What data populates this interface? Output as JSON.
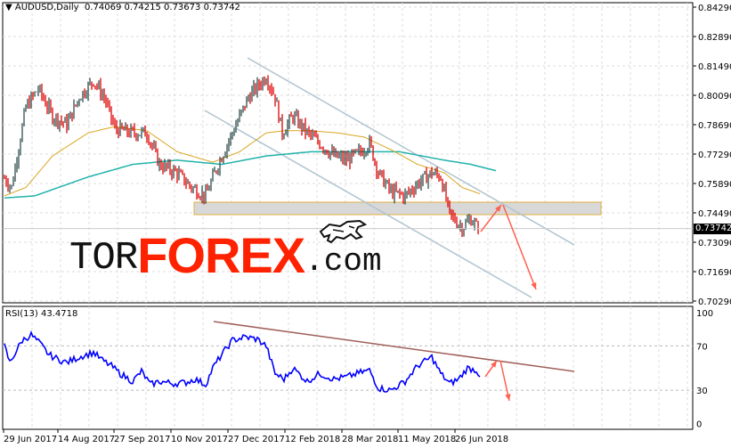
{
  "header": {
    "symbol_menu_icon": "triangle-down-icon",
    "title": "AUDUSD,Daily",
    "ohlc": "0.74069 0.74215 0.73673 0.73742"
  },
  "rsi_header": "RSI(13) 43.4718",
  "logo": {
    "part1": "TOR",
    "part2": "FOREX",
    "part3": ".com",
    "icon": "bull-icon"
  },
  "colors": {
    "bull_bar": "#2f4f4f",
    "bear_bar": "#e00000",
    "ma_fast": "#daa520",
    "ma_slow": "#20b2aa",
    "rsi": "#0000ff",
    "channel": "#b0c4d0",
    "arrow": "#ff6050",
    "rsi_trend": "#a0605a",
    "logo_red": "#ff2200"
  },
  "chart_data": [
    {
      "type": "ohlc",
      "title": "AUDUSD,Daily",
      "ylim": [
        0.7029,
        0.8429
      ],
      "price_ticks": [
        "0.84290",
        "0.82890",
        "0.81490",
        "0.80090",
        "0.78690",
        "0.77290",
        "0.75890",
        "0.74490",
        "0.73090",
        "0.71690",
        "0.70290"
      ],
      "current_price": "0.73742",
      "x_tick_labels": [
        "29 Jun 2017",
        "14 Aug 2017",
        "27 Sep 2017",
        "10 Nov 2017",
        "27 Dec 2017",
        "12 Feb 2018",
        "28 Mar 2018",
        "11 May 2018",
        "26 Jun 2018"
      ],
      "close_keypoints_by_bar": [
        [
          0,
          0.7614
        ],
        [
          4,
          0.7571
        ],
        [
          12,
          0.7953
        ],
        [
          19,
          0.804
        ],
        [
          27,
          0.791
        ],
        [
          35,
          0.787
        ],
        [
          42,
          0.8
        ],
        [
          50,
          0.808
        ],
        [
          56,
          0.8
        ],
        [
          62,
          0.785
        ],
        [
          72,
          0.783
        ],
        [
          80,
          0.783
        ],
        [
          87,
          0.768
        ],
        [
          97,
          0.7639
        ],
        [
          105,
          0.7571
        ],
        [
          113,
          0.753
        ],
        [
          120,
          0.768
        ],
        [
          128,
          0.783
        ],
        [
          137,
          0.8
        ],
        [
          147,
          0.81
        ],
        [
          152,
          0.8
        ],
        [
          156,
          0.783
        ],
        [
          162,
          0.791
        ],
        [
          170,
          0.783
        ],
        [
          177,
          0.778
        ],
        [
          185,
          0.772
        ],
        [
          192,
          0.77
        ],
        [
          200,
          0.774
        ],
        [
          205,
          0.778
        ],
        [
          210,
          0.764
        ],
        [
          217,
          0.755
        ],
        [
          225,
          0.753
        ],
        [
          232,
          0.759
        ],
        [
          240,
          0.764
        ],
        [
          245,
          0.762
        ],
        [
          250,
          0.744
        ],
        [
          257,
          0.738
        ],
        [
          262,
          0.742
        ],
        [
          266,
          0.73742
        ]
      ],
      "ma_fast_by_bar": [
        [
          0,
          0.753
        ],
        [
          12,
          0.757
        ],
        [
          27,
          0.772
        ],
        [
          47,
          0.783
        ],
        [
          62,
          0.786
        ],
        [
          80,
          0.784
        ],
        [
          97,
          0.774
        ],
        [
          117,
          0.769
        ],
        [
          132,
          0.774
        ],
        [
          147,
          0.783
        ],
        [
          157,
          0.784
        ],
        [
          172,
          0.784
        ],
        [
          187,
          0.783
        ],
        [
          202,
          0.781
        ],
        [
          217,
          0.775
        ],
        [
          232,
          0.768
        ],
        [
          247,
          0.764
        ],
        [
          257,
          0.757
        ],
        [
          267,
          0.754
        ]
      ],
      "ma_slow_by_bar": [
        [
          0,
          0.752
        ],
        [
          17,
          0.753
        ],
        [
          47,
          0.762
        ],
        [
          72,
          0.768
        ],
        [
          97,
          0.77
        ],
        [
          122,
          0.768
        ],
        [
          147,
          0.772
        ],
        [
          172,
          0.774
        ],
        [
          197,
          0.774
        ],
        [
          222,
          0.774
        ],
        [
          247,
          0.77
        ],
        [
          262,
          0.768
        ],
        [
          276,
          0.765
        ]
      ]
    },
    {
      "type": "line",
      "title": "RSI(13) 43.4718",
      "ylim": [
        0,
        100
      ],
      "y_ticks": [
        "100",
        "70",
        "30",
        "0"
      ],
      "levels": [
        70,
        30
      ],
      "rsi_keypoints_by_bar": [
        [
          0,
          70
        ],
        [
          3,
          55
        ],
        [
          10,
          75
        ],
        [
          15,
          80
        ],
        [
          20,
          72
        ],
        [
          25,
          62
        ],
        [
          30,
          58
        ],
        [
          35,
          55
        ],
        [
          42,
          60
        ],
        [
          50,
          64
        ],
        [
          55,
          57
        ],
        [
          60,
          52
        ],
        [
          65,
          45
        ],
        [
          72,
          38
        ],
        [
          77,
          47
        ],
        [
          82,
          35
        ],
        [
          87,
          38
        ],
        [
          95,
          36
        ],
        [
          102,
          37
        ],
        [
          107,
          40
        ],
        [
          113,
          35
        ],
        [
          117,
          50
        ],
        [
          122,
          62
        ],
        [
          128,
          75
        ],
        [
          135,
          78
        ],
        [
          142,
          76
        ],
        [
          147,
          70
        ],
        [
          152,
          45
        ],
        [
          157,
          40
        ],
        [
          162,
          50
        ],
        [
          170,
          38
        ],
        [
          177,
          45
        ],
        [
          185,
          40
        ],
        [
          192,
          42
        ],
        [
          200,
          46
        ],
        [
          205,
          48
        ],
        [
          210,
          32
        ],
        [
          217,
          30
        ],
        [
          225,
          38
        ],
        [
          232,
          52
        ],
        [
          240,
          60
        ],
        [
          245,
          45
        ],
        [
          250,
          36
        ],
        [
          255,
          40
        ],
        [
          260,
          50
        ],
        [
          265,
          48
        ],
        [
          267,
          43.47
        ]
      ]
    }
  ]
}
